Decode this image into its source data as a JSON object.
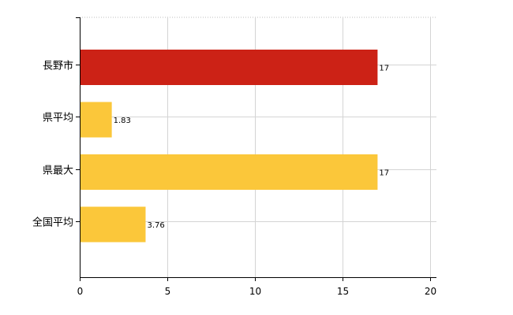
{
  "chart_data": {
    "type": "bar",
    "orientation": "horizontal",
    "categories": [
      "長野市",
      "県平均",
      "県最大",
      "全国平均"
    ],
    "values": [
      17,
      1.83,
      17,
      3.76
    ],
    "value_labels": [
      "17",
      "1.83",
      "17",
      "3.76"
    ],
    "bar_colors": [
      "#cc2216",
      "#fbc73a",
      "#fbc73a",
      "#fbc73a"
    ],
    "xlim": [
      0,
      20
    ],
    "xticks": [
      0,
      5,
      10,
      15,
      20
    ],
    "xtick_labels": [
      "0",
      "5",
      "10",
      "15",
      "20"
    ],
    "grid": true,
    "title": "",
    "xlabel": "",
    "ylabel": ""
  }
}
